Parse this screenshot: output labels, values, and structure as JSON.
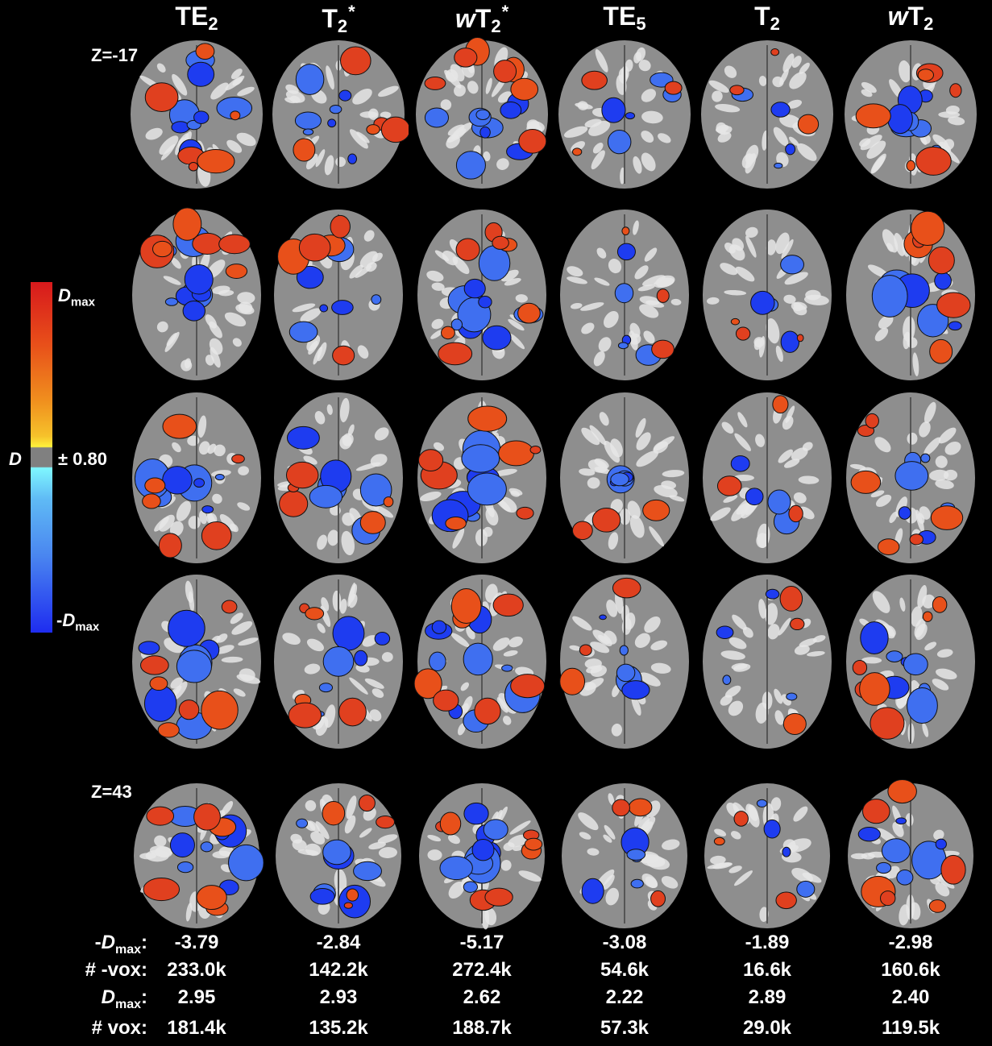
{
  "columns": [
    {
      "pre": "",
      "base": "TE",
      "sub": "2",
      "sup": ""
    },
    {
      "pre": "",
      "base": "T",
      "sub": "2",
      "sup": "*"
    },
    {
      "pre": "w",
      "base": "T",
      "sub": "2",
      "sup": "*"
    },
    {
      "pre": "",
      "base": "TE",
      "sub": "5",
      "sup": ""
    },
    {
      "pre": "",
      "base": "T",
      "sub": "2",
      "sup": ""
    },
    {
      "pre": "w",
      "base": "T",
      "sub": "2",
      "sup": ""
    }
  ],
  "slice_labels": {
    "top": "Z=-17",
    "bottom": "Z=43"
  },
  "colorbar": {
    "symbol": "D",
    "max_label_main": "D",
    "max_label_sub": "max",
    "min_label_prefix": "-",
    "min_label_main": "D",
    "min_label_sub": "max",
    "threshold_label": "± 0.80"
  },
  "stats": {
    "labels": {
      "neg_dmax": {
        "prefix": "-",
        "main": "D",
        "sub": "max",
        "suffix": ":"
      },
      "neg_vox": "# -vox:",
      "dmax": {
        "prefix": "",
        "main": "D",
        "sub": "max",
        "suffix": ":"
      },
      "vox": "# vox:"
    },
    "neg_dmax": [
      "-3.79",
      "-2.84",
      "-5.17",
      "-3.08",
      "-1.89",
      "-2.98"
    ],
    "neg_vox": [
      "233.0k",
      "142.2k",
      "272.4k",
      "54.6k",
      "16.6k",
      "160.6k"
    ],
    "dmax": [
      "2.95",
      "2.93",
      "2.62",
      "2.22",
      "2.89",
      "2.40"
    ],
    "vox": [
      "181.4k",
      "135.2k",
      "188.7k",
      "57.3k",
      "29.0k",
      "119.5k"
    ]
  },
  "colors": {
    "background": "#000000",
    "positive": "#e8501a",
    "negative": "#1e3cf0",
    "brain": "#8a8a8a"
  }
}
